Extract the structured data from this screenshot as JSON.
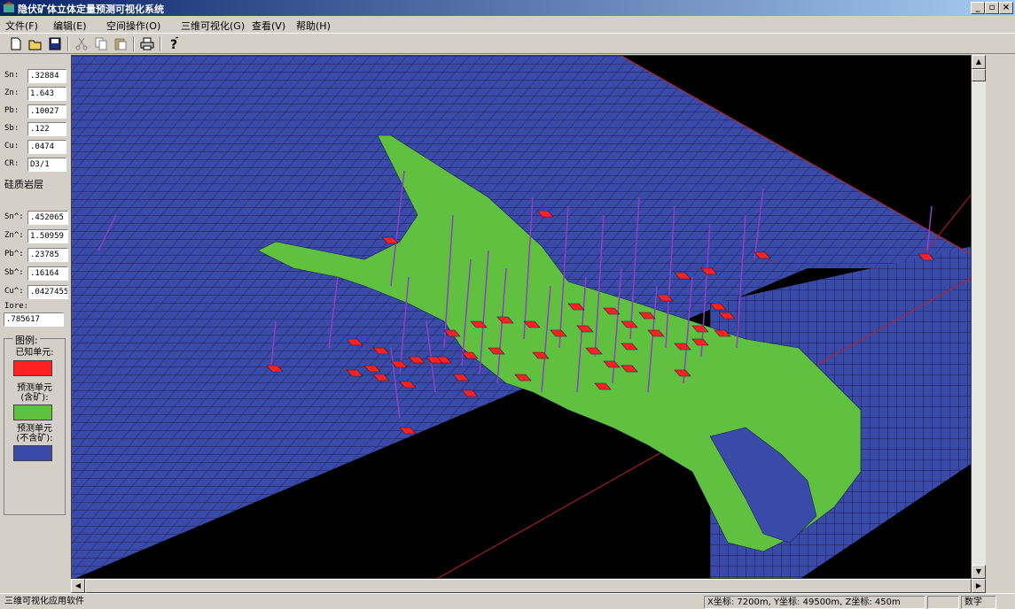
{
  "window": {
    "title": "隐伏矿体立体定量预测可视化系统",
    "controls": [
      "_",
      "▫",
      "×"
    ]
  },
  "menu": {
    "items": [
      "文件(F)",
      "编辑(E)",
      "空间操作(O)",
      "三维可视化(G)",
      "查看(V)",
      "帮助(H)"
    ]
  },
  "toolbar": {
    "buttons": [
      "new-file-icon",
      "open-folder-icon",
      "save-icon",
      "cut-icon",
      "copy-icon",
      "paste-icon",
      "print-icon",
      "help-icon"
    ]
  },
  "panel": {
    "fields1": [
      {
        "label": "Sn:",
        "value": ".32884"
      },
      {
        "label": "Zn:",
        "value": "1.643"
      },
      {
        "label": "Pb:",
        "value": ".10027"
      },
      {
        "label": "Sb:",
        "value": ".122"
      },
      {
        "label": "Cu:",
        "value": ".0474"
      },
      {
        "label": "CR:",
        "value": "D3/1"
      }
    ],
    "rock_type": "硅质岩层",
    "fields2": [
      {
        "label": "Sn^:",
        "value": ".452065"
      },
      {
        "label": "Zn^:",
        "value": "1.50959"
      },
      {
        "label": "Pb^:",
        "value": ".23785"
      },
      {
        "label": "Sb^:",
        "value": ".16164"
      },
      {
        "label": "Cu^:",
        "value": ".0427455"
      }
    ],
    "iore_label": "Iore:",
    "iore_value": ".785617"
  },
  "legend": {
    "title": "图例:",
    "known_label": "已知单元:",
    "predicted_ore_label1": "预测单元",
    "predicted_ore_label2": "(含矿):",
    "predicted_noore_label1": "预测单元",
    "predicted_noore_label2": "(不含矿):",
    "colors": {
      "known": "#ff2020",
      "predicted_ore": "#60c040",
      "predicted_noore": "#3a4aa8"
    }
  },
  "status": {
    "app_text": "三维可视化应用软件",
    "coords": "X坐标: 7200m, Y坐标: 49500m, Z坐标: 450m",
    "mode": "数字"
  },
  "colors": {
    "grid_blue": "#3a4aa8",
    "grid_line": "#1a2050",
    "ore_green": "#60c040",
    "known_red": "#ff2020",
    "drill_purple": "#9040c0",
    "axis_red": "#c02020"
  }
}
